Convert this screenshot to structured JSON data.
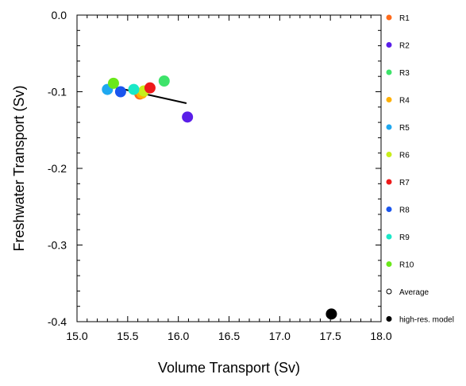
{
  "chart_data": {
    "type": "scatter",
    "title": "",
    "xlabel": "Volume Transport (Sv)",
    "ylabel": "Freshwater Transport (Sv)",
    "xlim": [
      15.0,
      18.0
    ],
    "ylim": [
      -0.4,
      0.0
    ],
    "x_ticks": [
      15.0,
      15.5,
      16.0,
      16.5,
      17.0,
      17.5,
      18.0
    ],
    "x_tick_labels": [
      "15.0",
      "15.5",
      "16.0",
      "16.5",
      "17.0",
      "17.5",
      "18.0"
    ],
    "y_ticks": [
      0.0,
      -0.1,
      -0.2,
      -0.3,
      -0.4
    ],
    "y_tick_labels": [
      "0.0",
      "-0.1",
      "-0.2",
      "-0.3",
      "-0.4"
    ],
    "grid": false,
    "legend_position": "right",
    "regression_line": {
      "x": [
        15.33,
        16.08
      ],
      "y": [
        -0.093,
        -0.115
      ],
      "color": "#000000"
    },
    "series": [
      {
        "name": "R1",
        "x": 15.62,
        "y": -0.103,
        "color": "#ff6a1a"
      },
      {
        "name": "R2",
        "x": 16.09,
        "y": -0.133,
        "color": "#5a1ee8"
      },
      {
        "name": "R3",
        "x": 15.86,
        "y": -0.086,
        "color": "#3de36a"
      },
      {
        "name": "R4",
        "x": 15.64,
        "y": -0.102,
        "color": "#ffb000"
      },
      {
        "name": "R5",
        "x": 15.3,
        "y": -0.097,
        "color": "#1ea8f0"
      },
      {
        "name": "R6",
        "x": 15.66,
        "y": -0.099,
        "color": "#c8ee1a"
      },
      {
        "name": "R7",
        "x": 15.72,
        "y": -0.095,
        "color": "#ee1a1a"
      },
      {
        "name": "R8",
        "x": 15.43,
        "y": -0.1,
        "color": "#1a55ee"
      },
      {
        "name": "R9",
        "x": 15.56,
        "y": -0.097,
        "color": "#1ae8c8"
      },
      {
        "name": "R10",
        "x": 15.36,
        "y": -0.089,
        "color": "#6ae81a"
      },
      {
        "name": "Average",
        "x": null,
        "y": null,
        "color": "#000000",
        "hollow": true
      },
      {
        "name": "high-res. model",
        "x": 17.51,
        "y": -0.39,
        "color": "#000000"
      }
    ]
  }
}
